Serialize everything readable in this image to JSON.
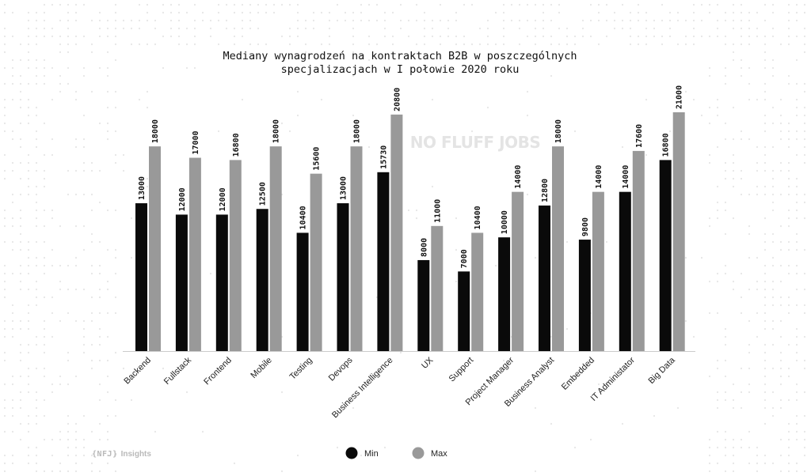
{
  "colors": {
    "min": "#0a0a0a",
    "max": "#999999",
    "axis": "#cccccc",
    "dots": "#e6e6e6"
  },
  "watermark": "NO FLUFF JOBS",
  "footer": {
    "brand": "{NFJ}",
    "sub": "Insights"
  },
  "chart_data": {
    "type": "bar",
    "title": "Mediany wynagrodzeń na kontraktach B2B w poszczególnych specjalizacjach w I połowie 2020 roku",
    "title_lines": [
      "Mediany wynagrodzeń na kontraktach B2B w poszczególnych",
      "specjalizacjach w I połowie 2020 roku"
    ],
    "categories": [
      "Backend",
      "Fullstack",
      "Frontend",
      "Mobile",
      "Testing",
      "Devops",
      "Business Intelligence",
      "UX",
      "Support",
      "Project Manager",
      "Business Analyst",
      "Embedded",
      "IT Administator",
      "Big Data"
    ],
    "series": [
      {
        "name": "Min",
        "color": "#0a0a0a",
        "values": [
          13000,
          12000,
          12000,
          12500,
          10400,
          13000,
          15730,
          8000,
          7000,
          10000,
          12800,
          9800,
          14000,
          16800
        ]
      },
      {
        "name": "Max",
        "color": "#999999",
        "values": [
          18000,
          17000,
          16800,
          18000,
          15600,
          18000,
          20800,
          11000,
          10400,
          14000,
          18000,
          14000,
          17600,
          21000
        ]
      }
    ],
    "ylim": [
      0,
      21000
    ],
    "grid": false,
    "legend": "bottom-center"
  }
}
